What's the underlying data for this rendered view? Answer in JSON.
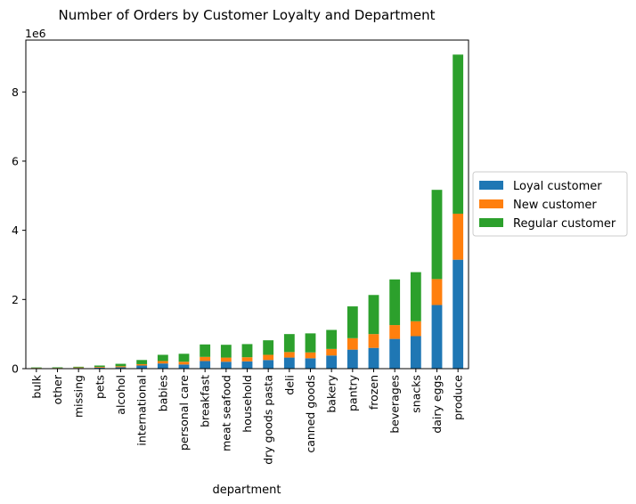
{
  "chart_data": {
    "type": "bar",
    "stacked": true,
    "title": "Number of Orders by Customer Loyalty and Department",
    "xlabel": "department",
    "ylabel": "",
    "scale_label": "1e6",
    "ylim": [
      0,
      9.5
    ],
    "yticks": [
      0,
      2,
      4,
      6,
      8
    ],
    "ytick_labels": [
      "0",
      "2",
      "4",
      "6",
      "8"
    ],
    "grid": false,
    "legend_position": "right",
    "categories": [
      "bulk",
      "other",
      "missing",
      "pets",
      "alcohol",
      "international",
      "babies",
      "personal care",
      "breakfast",
      "meat seafood",
      "household",
      "dry goods pasta",
      "deli",
      "canned goods",
      "bakery",
      "pantry",
      "frozen",
      "beverages",
      "snacks",
      "dairy eggs",
      "produce"
    ],
    "series": [
      {
        "name": "Loyal customer",
        "color": "#1f77b4",
        "values": [
          0.012,
          0.013,
          0.02,
          0.03,
          0.04,
          0.09,
          0.15,
          0.12,
          0.22,
          0.2,
          0.21,
          0.25,
          0.32,
          0.3,
          0.38,
          0.55,
          0.6,
          0.86,
          0.94,
          1.84,
          3.15
        ]
      },
      {
        "name": "New customer",
        "color": "#ff7f0e",
        "values": [
          0.008,
          0.007,
          0.015,
          0.02,
          0.03,
          0.04,
          0.07,
          0.08,
          0.12,
          0.12,
          0.12,
          0.15,
          0.16,
          0.17,
          0.19,
          0.33,
          0.4,
          0.4,
          0.43,
          0.75,
          1.33
        ]
      },
      {
        "name": "Regular customer",
        "color": "#2ca02c",
        "values": [
          0.015,
          0.018,
          0.02,
          0.04,
          0.07,
          0.12,
          0.18,
          0.23,
          0.36,
          0.37,
          0.38,
          0.42,
          0.52,
          0.55,
          0.55,
          0.92,
          1.13,
          1.32,
          1.42,
          2.58,
          4.6
        ]
      }
    ]
  }
}
